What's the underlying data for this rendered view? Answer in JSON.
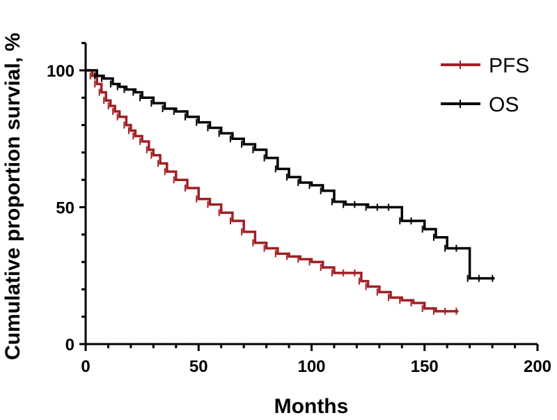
{
  "chart_data": {
    "type": "line",
    "step": true,
    "title": "",
    "xlabel": "Months",
    "ylabel": "Cumulative proportion survial, %",
    "xlim": [
      0,
      200
    ],
    "ylim": [
      0,
      110
    ],
    "xticks": [
      0,
      50,
      100,
      150,
      200
    ],
    "yticks": [
      0,
      50,
      100
    ],
    "grid": false,
    "legend_position": "top-right",
    "series": [
      {
        "name": "PFS",
        "color": "#a11f23",
        "x": [
          0,
          3,
          5,
          7,
          9,
          11,
          13,
          15,
          18,
          20,
          22,
          25,
          28,
          30,
          33,
          36,
          40,
          45,
          50,
          55,
          60,
          65,
          70,
          75,
          80,
          85,
          90,
          95,
          100,
          105,
          110,
          115,
          120,
          122,
          125,
          130,
          135,
          140,
          145,
          150,
          155,
          160,
          165
        ],
        "y": [
          100,
          98,
          95,
          92,
          89,
          87,
          85,
          83,
          80,
          78,
          76,
          74,
          71,
          69,
          66,
          63,
          60,
          57,
          53,
          51,
          48,
          45,
          41,
          37,
          35,
          33,
          32,
          31,
          30,
          28,
          26,
          26,
          26,
          23,
          21,
          19,
          17,
          16,
          15,
          13,
          12,
          12,
          12
        ]
      },
      {
        "name": "OS",
        "color": "#000000",
        "x": [
          0,
          5,
          8,
          12,
          15,
          18,
          22,
          25,
          30,
          35,
          40,
          45,
          50,
          55,
          60,
          65,
          70,
          75,
          80,
          85,
          90,
          95,
          100,
          105,
          110,
          115,
          120,
          125,
          130,
          135,
          140,
          145,
          150,
          155,
          160,
          165,
          170,
          175,
          181
        ],
        "y": [
          100,
          98,
          97,
          95,
          94,
          93,
          92,
          90,
          88,
          86,
          85,
          83,
          81,
          79,
          77,
          75,
          73,
          71,
          68,
          64,
          61,
          59,
          58,
          56,
          52,
          51,
          51,
          50,
          50,
          50,
          45,
          45,
          42,
          39,
          35,
          35,
          24,
          24,
          24
        ]
      }
    ]
  }
}
